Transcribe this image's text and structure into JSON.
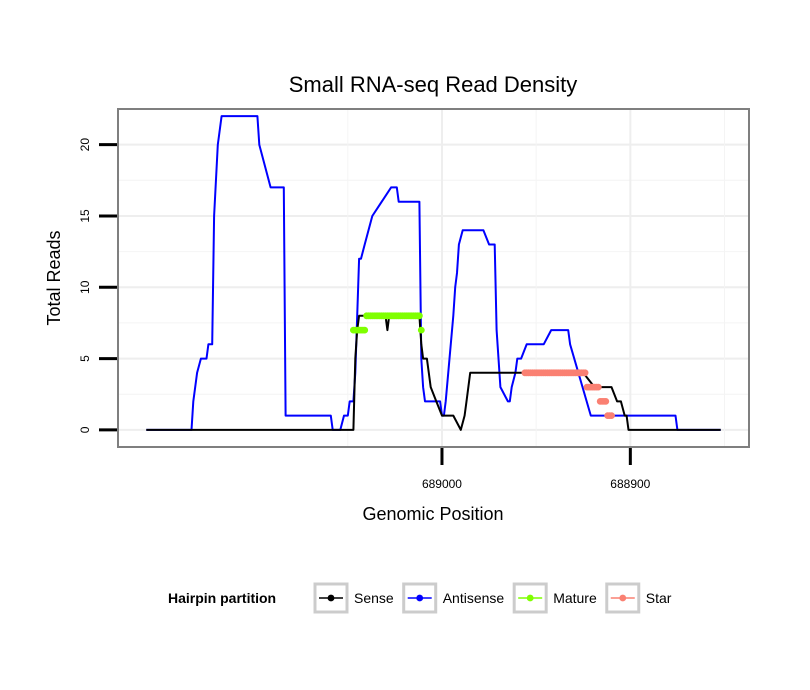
{
  "chart_data": {
    "type": "line",
    "title": "Small RNA-seq Read Density",
    "xlabel": "Genomic Position",
    "ylabel": "Total Reads",
    "xlim": [
      689172,
      688837
    ],
    "x_reversed": true,
    "ylim": [
      -1.2,
      22.5
    ],
    "x_ticks": [
      689000,
      688900
    ],
    "x_tick_labels": [
      "689000",
      "688900"
    ],
    "y_ticks": [
      0,
      5,
      10,
      15,
      20
    ],
    "y_tick_labels": [
      "0",
      "5",
      "10",
      "15",
      "20"
    ],
    "grid": true,
    "legend": {
      "title": "Hairpin partition",
      "position": "bottom",
      "entries": [
        {
          "name": "Sense",
          "color": "#000000"
        },
        {
          "name": "Antisense",
          "color": "#0000ff"
        },
        {
          "name": "Mature",
          "color": "#7fff00"
        },
        {
          "name": "Star",
          "color": "#fa8072"
        }
      ]
    },
    "series": [
      {
        "name": "Sense",
        "color": "#000000",
        "style": "line",
        "x": [
          689157,
          689047,
          689046,
          689045,
          689044,
          689030,
          689029,
          689028,
          689012,
          689011,
          689010,
          689008,
          689006,
          689003,
          689000,
          688994,
          688990,
          688988,
          688987,
          688985,
          688925,
          688919,
          688910,
          688907,
          688905,
          688903,
          688902,
          688901,
          688900,
          688852
        ],
        "values": [
          0,
          0,
          5,
          7,
          8,
          8,
          7,
          8,
          8,
          6,
          5,
          5,
          3,
          2,
          1,
          1,
          0,
          1,
          2,
          4,
          4,
          3,
          3,
          2,
          2,
          1,
          1,
          0,
          0,
          0
        ]
      },
      {
        "name": "Antisense",
        "color": "#0000ff",
        "style": "line",
        "x": [
          689157,
          689133,
          689132,
          689130,
          689128,
          689125,
          689124,
          689122,
          689121,
          689119,
          689117,
          689116,
          689115,
          689098,
          689097,
          689091,
          689090,
          689084,
          689083,
          689059,
          689058,
          689057,
          689054,
          689052,
          689050,
          689049,
          689047,
          689046,
          689045,
          689044,
          689043,
          689041,
          689039,
          689037,
          689027,
          689025,
          689024,
          689023,
          689022,
          689021,
          689020,
          689012,
          689011,
          689010,
          689009,
          689007,
          689006,
          689001,
          689000,
          688999,
          688998,
          688996,
          688994,
          688993,
          688992,
          688991,
          688989,
          688979,
          688978,
          688975,
          688974,
          688972,
          688971,
          688970,
          688969,
          688965,
          688964,
          688963,
          688961,
          688960,
          688959,
          688958,
          688955,
          688954,
          688948,
          688947,
          688946,
          688942,
          688941,
          688934,
          688933,
          688932,
          688921,
          688920,
          688919,
          688918,
          688917,
          688908,
          688907,
          688905,
          688904,
          688903,
          688900,
          688898,
          688897,
          688893,
          688892,
          688889,
          688888,
          688886,
          688884,
          688883,
          688876,
          688875,
          688874,
          688873,
          688872,
          688856,
          688855,
          688852
        ],
        "values": [
          0,
          0,
          2,
          4,
          5,
          5,
          6,
          6,
          15,
          20,
          22,
          22,
          22,
          22,
          20,
          17,
          17,
          17,
          1,
          1,
          0,
          0,
          0,
          1,
          1,
          2,
          2,
          4,
          8,
          12,
          12,
          13,
          14,
          15,
          17,
          17,
          17,
          16,
          16,
          16,
          16,
          16,
          5,
          3,
          2,
          2,
          2,
          2,
          1,
          1,
          2,
          5,
          8,
          10,
          11,
          13,
          14,
          14,
          14,
          13,
          13,
          13,
          7,
          5,
          3,
          2,
          2,
          3,
          4,
          5,
          5,
          5,
          6,
          6,
          6,
          6,
          6,
          7,
          7,
          7,
          7,
          6,
          1,
          1,
          1,
          1,
          1,
          1,
          1,
          1,
          1,
          1,
          1,
          1,
          1,
          1,
          1,
          1,
          1,
          1,
          1,
          1,
          1,
          0,
          0,
          0,
          0,
          0,
          0,
          0
        ]
      },
      {
        "name": "Mature",
        "color": "#7fff00",
        "style": "points",
        "x": [
          689047,
          689046,
          689045,
          689044,
          689043,
          689042,
          689041,
          689040,
          689039,
          689038,
          689037,
          689036,
          689035,
          689034,
          689033,
          689032,
          689031,
          689030,
          689029,
          689028,
          689027,
          689026,
          689025,
          689024,
          689023,
          689022,
          689021,
          689020,
          689019,
          689018,
          689017,
          689016,
          689015,
          689014,
          689013,
          689012,
          689011
        ],
        "values": [
          7,
          7,
          7,
          7,
          7,
          7,
          7,
          8,
          8,
          8,
          8,
          8,
          8,
          8,
          8,
          8,
          8,
          8,
          8,
          8,
          8,
          8,
          8,
          8,
          8,
          8,
          8,
          8,
          8,
          8,
          8,
          8,
          8,
          8,
          8,
          8,
          7
        ]
      },
      {
        "name": "Star",
        "color": "#fa8072",
        "style": "points",
        "x": [
          688956,
          688955,
          688954,
          688953,
          688952,
          688951,
          688950,
          688949,
          688948,
          688947,
          688946,
          688945,
          688944,
          688943,
          688942,
          688941,
          688940,
          688939,
          688938,
          688937,
          688936,
          688935,
          688934,
          688933,
          688932,
          688931,
          688930,
          688929,
          688928,
          688927,
          688926,
          688925,
          688924,
          688923,
          688922,
          688921,
          688920,
          688919,
          688918,
          688917,
          688916,
          688915,
          688914,
          688913,
          688912,
          688911,
          688910
        ],
        "values": [
          4,
          4,
          4,
          4,
          4,
          4,
          4,
          4,
          4,
          4,
          4,
          4,
          4,
          4,
          4,
          4,
          4,
          4,
          4,
          4,
          4,
          4,
          4,
          4,
          4,
          4,
          4,
          4,
          4,
          4,
          4,
          4,
          4,
          3,
          3,
          3,
          3,
          3,
          3,
          3,
          2,
          2,
          2,
          2,
          1,
          1,
          1
        ]
      }
    ]
  }
}
